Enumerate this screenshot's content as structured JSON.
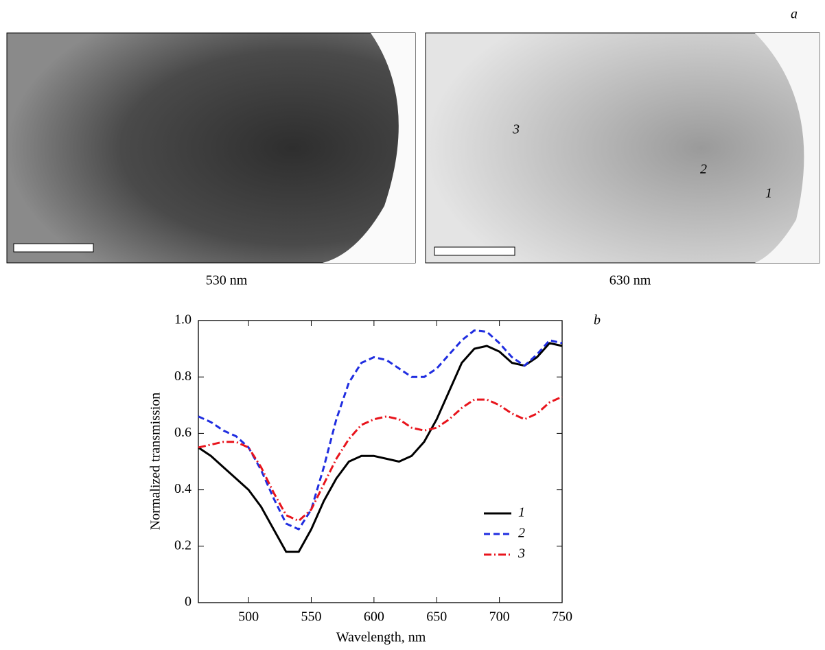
{
  "figure": {
    "panel_a_label": "a",
    "chart_label": "b",
    "images": [
      {
        "caption": "530 nm"
      },
      {
        "caption": "630 nm",
        "annotations": [
          "3",
          "2",
          "1"
        ]
      }
    ]
  },
  "chart_data": {
    "type": "line",
    "x_label": "Wavelength, nm",
    "y_label": "Normalized transmission",
    "x": [
      460,
      470,
      480,
      490,
      500,
      510,
      520,
      530,
      540,
      550,
      560,
      570,
      580,
      590,
      600,
      610,
      620,
      630,
      640,
      650,
      660,
      670,
      680,
      690,
      700,
      710,
      720,
      730,
      740,
      750
    ],
    "series": [
      {
        "name": "1",
        "color": "#000000",
        "linestyle": "solid",
        "values": [
          0.55,
          0.52,
          0.48,
          0.44,
          0.4,
          0.34,
          0.26,
          0.18,
          0.18,
          0.26,
          0.36,
          0.44,
          0.5,
          0.52,
          0.52,
          0.51,
          0.5,
          0.52,
          0.57,
          0.65,
          0.75,
          0.85,
          0.9,
          0.91,
          0.89,
          0.85,
          0.84,
          0.87,
          0.92,
          0.91
        ]
      },
      {
        "name": "2",
        "color": "#1f2de0",
        "linestyle": "dashed",
        "values": [
          0.66,
          0.64,
          0.61,
          0.59,
          0.55,
          0.47,
          0.37,
          0.28,
          0.26,
          0.33,
          0.48,
          0.65,
          0.78,
          0.85,
          0.87,
          0.86,
          0.83,
          0.8,
          0.8,
          0.83,
          0.88,
          0.93,
          0.965,
          0.96,
          0.92,
          0.87,
          0.84,
          0.88,
          0.93,
          0.92
        ]
      },
      {
        "name": "3",
        "color": "#e8141c",
        "linestyle": "dashdot",
        "values": [
          0.55,
          0.56,
          0.57,
          0.57,
          0.55,
          0.48,
          0.39,
          0.31,
          0.29,
          0.33,
          0.42,
          0.51,
          0.58,
          0.63,
          0.65,
          0.66,
          0.65,
          0.62,
          0.61,
          0.62,
          0.65,
          0.69,
          0.72,
          0.72,
          0.7,
          0.67,
          0.65,
          0.67,
          0.71,
          0.73
        ]
      }
    ],
    "xlim": [
      460,
      750
    ],
    "ylim": [
      0,
      1
    ],
    "xticks": [
      500,
      550,
      600,
      650,
      700,
      750
    ],
    "yticks": [
      0,
      0.2,
      0.4,
      0.6,
      0.8,
      {
        "value": 1,
        "label": "1.0"
      }
    ]
  }
}
